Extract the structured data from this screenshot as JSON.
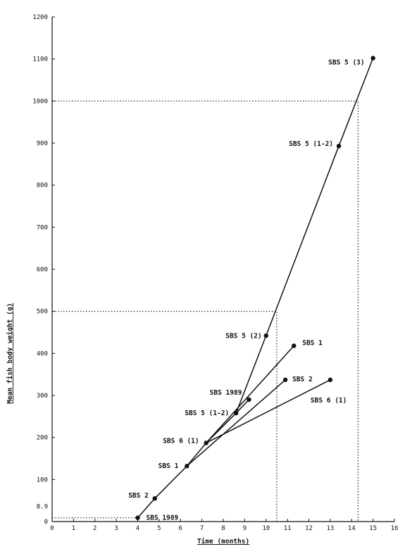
{
  "chart_data": {
    "type": "line",
    "xlabel": "Time (months)",
    "ylabel": "Mean fish body weight (g)",
    "xlim": [
      0,
      16
    ],
    "ylim": [
      0,
      1200
    ],
    "x_ticks": [
      0,
      1,
      2,
      3,
      4,
      5,
      6,
      7,
      8,
      9,
      10,
      11,
      12,
      13,
      14,
      15,
      16
    ],
    "y_ticks": [
      0,
      100,
      200,
      300,
      400,
      500,
      600,
      700,
      800,
      900,
      1000,
      1100,
      1200
    ],
    "y_extra_tick": "8.9",
    "grid": false,
    "points": [
      {
        "label": "SBS 1989",
        "x": 4.0,
        "y": 9
      },
      {
        "label": "SBS 2",
        "x": 4.8,
        "y": 55
      },
      {
        "label": "SBS 1",
        "x": 6.3,
        "y": 132
      },
      {
        "label": "SBS 6 (1)",
        "x": 7.2,
        "y": 187
      },
      {
        "label": "SBS 5 (1-2)",
        "x": 8.6,
        "y": 258
      },
      {
        "label": "SBS 1989",
        "x": 9.2,
        "y": 290
      },
      {
        "label": "SBS 5 (2)",
        "x": 10.0,
        "y": 442
      },
      {
        "label": "SBS 2",
        "x": 10.9,
        "y": 337
      },
      {
        "label": "SBS 1",
        "x": 11.3,
        "y": 418
      },
      {
        "label": "SBS 6 (1)",
        "x": 13.0,
        "y": 337
      },
      {
        "label": "SBS 5 (1-2)",
        "x": 13.4,
        "y": 893
      },
      {
        "label": "SBS 5 (3)",
        "x": 15.0,
        "y": 1102
      }
    ],
    "series": [
      {
        "points": [
          [
            4.0,
            9
          ],
          [
            4.8,
            55
          ],
          [
            6.3,
            132
          ],
          [
            7.2,
            187
          ],
          [
            8.6,
            258
          ],
          [
            10.0,
            442
          ],
          [
            13.4,
            893
          ],
          [
            15.0,
            1102
          ]
        ]
      },
      {
        "points": [
          [
            8.6,
            258
          ],
          [
            9.2,
            290
          ]
        ]
      },
      {
        "points": [
          [
            7.2,
            187
          ],
          [
            11.3,
            418
          ]
        ]
      },
      {
        "points": [
          [
            6.3,
            132
          ],
          [
            10.9,
            337
          ]
        ]
      },
      {
        "points": [
          [
            7.2,
            187
          ],
          [
            13.0,
            337
          ]
        ]
      }
    ],
    "reference_lines": [
      {
        "points": [
          [
            0,
            8.9
          ],
          [
            4.0,
            8.9
          ]
        ]
      },
      {
        "points": [
          [
            0,
            500
          ],
          [
            10.5,
            500
          ],
          [
            10.5,
            0
          ]
        ]
      },
      {
        "points": [
          [
            0,
            1000
          ],
          [
            14.3,
            1000
          ],
          [
            14.3,
            0
          ]
        ]
      }
    ]
  }
}
